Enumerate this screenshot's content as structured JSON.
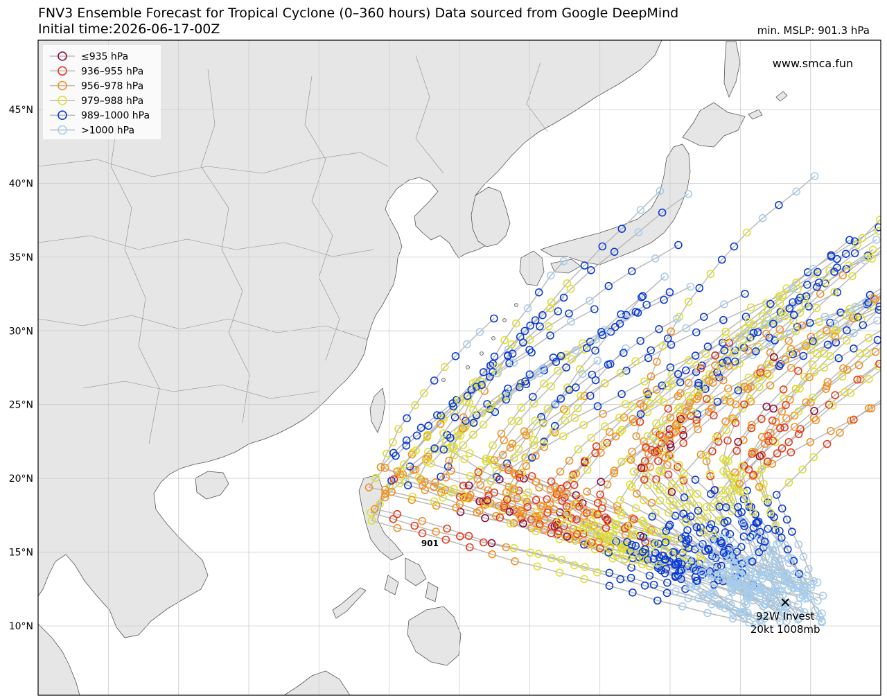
{
  "header": {
    "title": "FNV3 Ensemble Forecast for Tropical Cyclone (0–360 hours) Data sourced from Google DeepMind",
    "init_time": "Initial time:2026-06-17-00Z",
    "min_mslp": "min. MSLP: 901.3 hPa"
  },
  "watermark": "www.smca.fun",
  "invest": {
    "marker_icon": "x-mark-icon",
    "line1": "92W Invest",
    "line2": "20kt 1008mb",
    "lat": 11.6,
    "lon": 153.2
  },
  "min_label": {
    "text": "901",
    "lat": 15.6,
    "lon": 127.9
  },
  "legend": [
    {
      "label": "≤935 hPa",
      "color": "#8c0a3c"
    },
    {
      "label": "936–955 hPa",
      "color": "#e8391a"
    },
    {
      "label": "956–978 hPa",
      "color": "#f5901c"
    },
    {
      "label": "979–988 hPa",
      "color": "#e0df30"
    },
    {
      "label": "989–1000 hPa",
      "color": "#0a3cd8"
    },
    {
      "label": ">1000 hPa",
      "color": "#a5cdee"
    }
  ],
  "axes": {
    "lat_ticks": [
      "10°N",
      "15°N",
      "20°N",
      "25°N",
      "30°N",
      "35°N",
      "40°N",
      "45°N"
    ],
    "lat_values": [
      10,
      15,
      20,
      25,
      30,
      35,
      40,
      45
    ],
    "lat_range": [
      5.3,
      49.7
    ],
    "lon_range": [
      100,
      160
    ],
    "lon_gridlines": [
      105,
      110,
      115,
      120,
      125,
      130,
      135,
      140,
      145,
      150,
      155
    ]
  },
  "colors": {
    "land": "#e6e6e6",
    "ocean": "#ffffff",
    "coast": "#555555",
    "track": "#b9b9b9",
    "grid": "#cccccc"
  }
}
